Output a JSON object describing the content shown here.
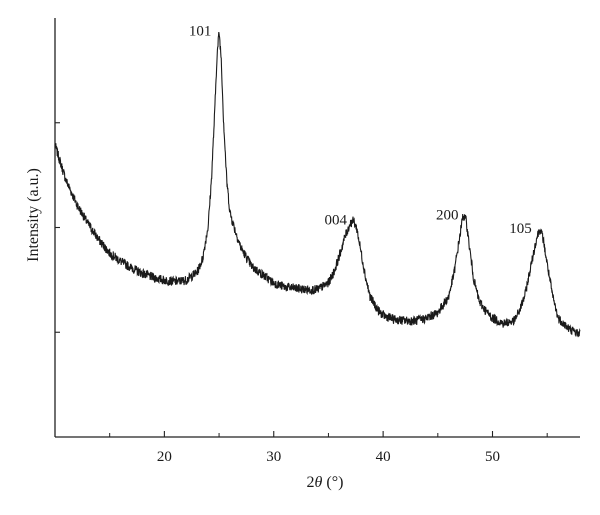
{
  "chart_data": {
    "type": "line",
    "xlabel_parts": {
      "prefix": "2",
      "symbol": "θ",
      "suffix": " (°)"
    },
    "ylabel": "Intensity (a.u.)",
    "xlim": [
      10,
      58
    ],
    "x_ticks": [
      20,
      30,
      40,
      50
    ],
    "x_minor_ticks": [
      15,
      25,
      35,
      45,
      55
    ],
    "y_ticks_unlabeled": 3,
    "grid": false,
    "series": [
      {
        "x": [
          10,
          11,
          12,
          13,
          14,
          15,
          16,
          17,
          18,
          19,
          20,
          21,
          22,
          23,
          23.5,
          24,
          24.3,
          24.6,
          24.8,
          25,
          25.2,
          25.4,
          25.7,
          26,
          26.5,
          27,
          28,
          29,
          30,
          31,
          32,
          33,
          34,
          35,
          35.5,
          36,
          36.5,
          37,
          37.3,
          37.6,
          38,
          38.4,
          38.8,
          39.5,
          40,
          41,
          42,
          43,
          44,
          45,
          46,
          46.5,
          47,
          47.3,
          47.6,
          47.9,
          48.3,
          48.8,
          49.5,
          50,
          51,
          52,
          52.5,
          53,
          53.5,
          54,
          54.3,
          54.6,
          55,
          55.5,
          56,
          57,
          58
        ],
        "y": [
          78,
          65,
          56,
          49,
          43,
          38,
          35,
          32.5,
          30.5,
          29,
          28,
          27.5,
          28,
          31,
          36,
          48,
          65,
          90,
          110,
          120,
          110,
          88,
          65,
          53,
          46,
          40,
          33,
          30,
          27,
          25.5,
          25,
          24.5,
          24.5,
          27,
          31,
          37,
          44,
          49,
          50,
          47,
          38,
          29,
          22,
          17,
          15,
          13.5,
          13,
          13,
          14,
          16,
          22,
          31,
          44,
          52,
          50,
          40,
          28,
          20,
          16,
          14,
          12,
          13,
          17,
          23,
          33,
          43,
          47,
          44,
          34,
          22,
          14,
          10,
          8
        ]
      }
    ],
    "ylim": [
      -30,
      125
    ],
    "peaks": [
      {
        "label": "101",
        "x": 25.0,
        "y": 120
      },
      {
        "label": "004",
        "x": 37.4,
        "y": 50
      },
      {
        "label": "200",
        "x": 47.6,
        "y": 52
      },
      {
        "label": "105",
        "x": 54.3,
        "y": 47
      }
    ]
  }
}
